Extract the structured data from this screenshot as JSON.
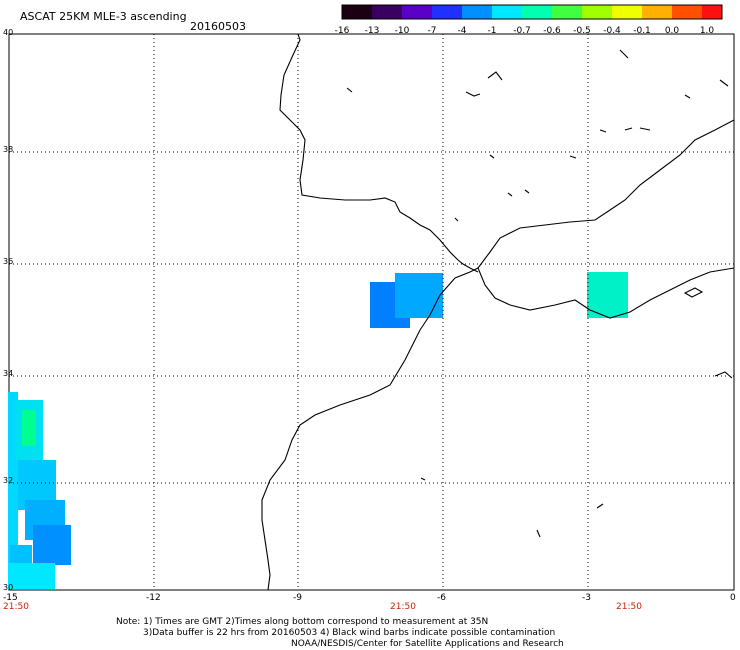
{
  "header": {
    "title": "ASCAT 25KM MLE-3 ascending",
    "date": "20160503"
  },
  "colorbar": {
    "labels": [
      "-16",
      "-13",
      "-10",
      "-7",
      "-4",
      "-1",
      "-0.7",
      "-0.6",
      "-0.5",
      "-0.4",
      "-0.1",
      "0.0",
      "1.0"
    ],
    "colors": [
      "#1a0010",
      "#3a0060",
      "#5a00c8",
      "#2030ff",
      "#0090ff",
      "#00e8ff",
      "#00ffb0",
      "#40ff40",
      "#a0ff00",
      "#f0ff00",
      "#ffb000",
      "#ff5000",
      "#ff1010"
    ]
  },
  "axes": {
    "lat_labels": [
      "40",
      "38",
      "36",
      "34",
      "32",
      "30"
    ],
    "lon_labels": [
      "-15",
      "-12",
      "-9",
      "-6",
      "-3",
      "0"
    ],
    "lon_range": [
      -15,
      0
    ],
    "lat_range": [
      30,
      40
    ]
  },
  "pass_times": [
    "21:50",
    "21:50",
    "21:50"
  ],
  "notes": {
    "line1": "Note: 1) Times are GMT 2)Times along bottom correspond to measurement at 35N",
    "line2": "3)Data buffer is 22 hrs from 20160503 4) Black wind barbs indicate possible contamination",
    "line3": "NOAA/NESDIS/Center for Satellite Applications and Research"
  },
  "swath_cells": [
    {
      "color": "#0080ff"
    },
    {
      "color": "#00a8ff"
    },
    {
      "color": "#00f0c8"
    },
    {
      "color": "#00c8ff"
    },
    {
      "color": "#00e0ff"
    },
    {
      "color": "#00ff90"
    },
    {
      "color": "#00b8ff"
    },
    {
      "color": "#0090ff"
    },
    {
      "color": "#00e8ff"
    }
  ]
}
